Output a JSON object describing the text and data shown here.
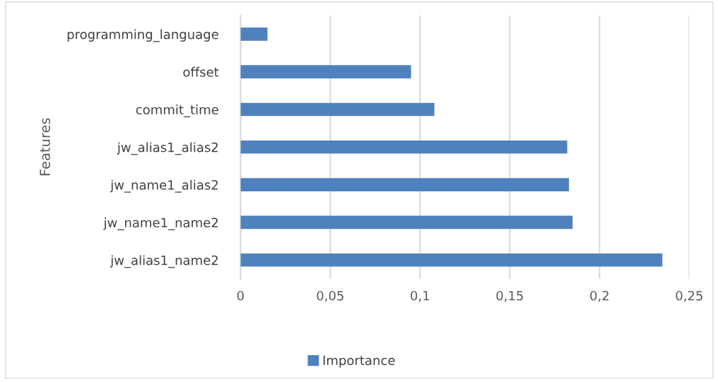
{
  "chart_data": {
    "type": "bar",
    "orientation": "horizontal",
    "ylabel": "Features",
    "categories": [
      "programming_language",
      "offset",
      "commit_time",
      "jw_alias1_alias2",
      "jw_name1_alias2",
      "jw_name1_name2",
      "jw_alias1_name2"
    ],
    "series": [
      {
        "name": "Importance",
        "color": "#4f81bd",
        "values": [
          0.015,
          0.095,
          0.108,
          0.182,
          0.183,
          0.185,
          0.235
        ]
      }
    ],
    "xlim": [
      0,
      0.25
    ],
    "xticks": [
      0,
      {
        "value": 0.05,
        "label": "0,05"
      },
      {
        "value": 0.1,
        "label": "0,1"
      },
      {
        "value": 0.15,
        "label": "0,15"
      },
      {
        "value": 0.2,
        "label": "0,2"
      },
      {
        "value": 0.25,
        "label": "0,25"
      }
    ],
    "grid": "x",
    "legend": "bottom"
  }
}
